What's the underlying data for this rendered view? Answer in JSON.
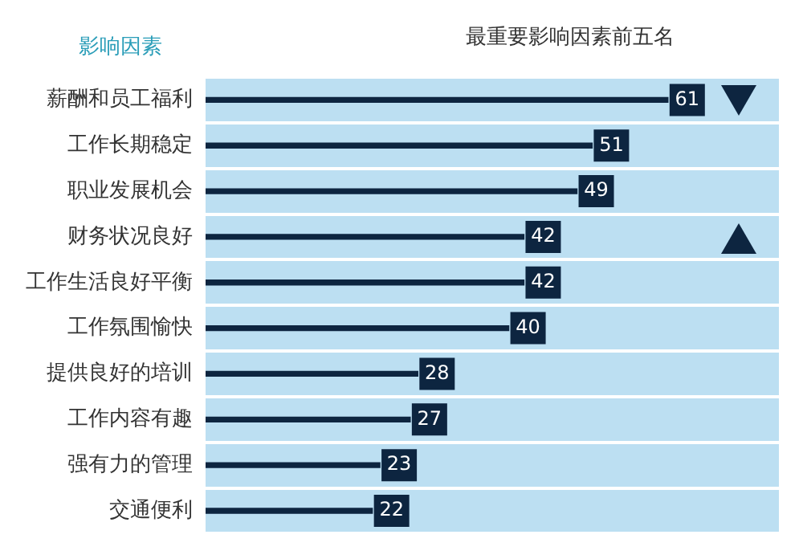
{
  "chart_data": {
    "type": "bar",
    "orientation": "horizontal",
    "title": "最重要影响因素前五名",
    "ylabel": "影响因素",
    "categories": [
      "薪酬和员工福利",
      "工作长期稳定",
      "职业发展机会",
      "财务状况良好",
      "工作生活良好平衡",
      "工作氛围愉快",
      "提供良好的培训",
      "工作内容有趣",
      "强有力的管理",
      "交通便利"
    ],
    "values": [
      61,
      51,
      49,
      42,
      42,
      40,
      28,
      27,
      23,
      22
    ],
    "color": "#0d2540",
    "data_labels": true,
    "grid": "y",
    "legend": false
  }
}
